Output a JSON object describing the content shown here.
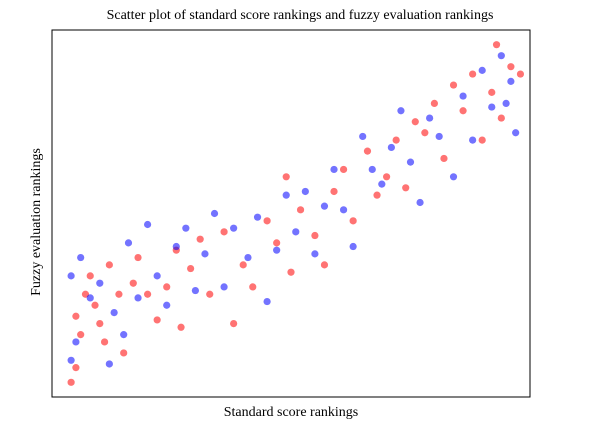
{
  "chart_data": {
    "type": "scatter",
    "title": "Scatter plot of standard score rankings and fuzzy evaluation rankings",
    "x_label": "Standard score rankings",
    "y_label": "Fuzzy evaluation rankings",
    "xlim": [
      0,
      100
    ],
    "ylim": [
      0,
      100
    ],
    "series": [
      {
        "color": "#ff0000",
        "x": [
          4,
          5,
          6,
          5,
          7,
          8,
          9,
          10,
          11,
          12,
          14,
          15,
          17,
          18,
          20,
          22,
          24,
          26,
          27,
          29,
          31,
          33,
          36,
          38,
          40,
          42,
          45,
          47,
          49,
          50,
          52,
          55,
          57,
          59,
          61,
          63,
          66,
          68,
          70,
          72,
          74,
          76,
          78,
          80,
          82,
          84,
          86,
          88,
          90,
          92,
          94,
          96,
          93,
          98
        ],
        "values": [
          4,
          8,
          17,
          22,
          28,
          33,
          25,
          20,
          15,
          36,
          28,
          12,
          31,
          38,
          28,
          21,
          30,
          40,
          19,
          35,
          43,
          28,
          45,
          20,
          36,
          30,
          48,
          42,
          60,
          34,
          51,
          44,
          36,
          56,
          62,
          48,
          67,
          55,
          60,
          70,
          57,
          75,
          72,
          80,
          65,
          85,
          78,
          88,
          70,
          83,
          76,
          90,
          96,
          88
        ]
      },
      {
        "color": "#0000ff",
        "x": [
          4,
          5,
          4,
          6,
          8,
          10,
          12,
          13,
          15,
          16,
          18,
          20,
          22,
          24,
          26,
          28,
          30,
          32,
          34,
          36,
          38,
          41,
          43,
          45,
          47,
          49,
          51,
          53,
          55,
          57,
          59,
          61,
          63,
          65,
          67,
          69,
          71,
          73,
          75,
          77,
          79,
          81,
          84,
          86,
          88,
          90,
          92,
          94,
          95,
          97,
          96
        ],
        "values": [
          10,
          15,
          33,
          38,
          27,
          31,
          9,
          23,
          17,
          42,
          27,
          47,
          33,
          25,
          41,
          46,
          29,
          39,
          50,
          30,
          46,
          38,
          49,
          26,
          40,
          55,
          45,
          56,
          39,
          52,
          62,
          51,
          41,
          71,
          62,
          58,
          68,
          78,
          64,
          53,
          76,
          71,
          60,
          82,
          70,
          89,
          79,
          93,
          80,
          72,
          86
        ]
      }
    ]
  }
}
